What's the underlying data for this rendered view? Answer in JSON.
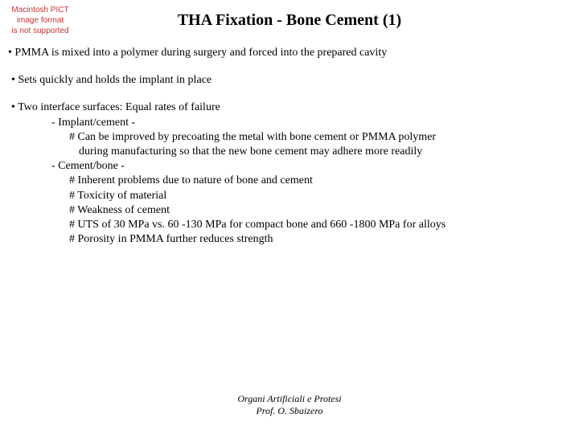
{
  "pict_notice": {
    "line1": "Macintosh PICT",
    "line2": "image format",
    "line3": "is not supported"
  },
  "title": "THA Fixation - Bone Cement (1)",
  "bullets": {
    "b1": "• PMMA is mixed into a polymer during surgery and forced into the prepared cavity",
    "b2": "•  Sets quickly and holds the implant in place",
    "b3": "•  Two interface surfaces: Equal rates of failure",
    "b3_sub1": "- Implant/cement -",
    "b3_sub1_1a": "# Can be improved by precoating the metal with bone cement or PMMA polymer",
    "b3_sub1_1b": "during manufacturing so that the new bone cement may adhere more readily",
    "b3_sub2": "- Cement/bone -",
    "b3_sub2_1": "# Inherent problems due to nature of bone and cement",
    "b3_sub2_2": "# Toxicity of material",
    "b3_sub2_3": "# Weakness of cement",
    "b3_sub2_4": "# UTS of 30 MPa vs. 60 -130 MPa for compact bone and 660 -1800 MPa for alloys",
    "b3_sub2_5": "# Porosity in PMMA further reduces strength"
  },
  "footer": {
    "line1": "Organi Artificiali e Protesi",
    "line2": "Prof. O. Sbaizero"
  },
  "colors": {
    "background": "#ffffff",
    "text": "#000000",
    "pict_text": "#cc3333"
  },
  "typography": {
    "title_fontsize": 20,
    "body_fontsize": 14,
    "footer_fontsize": 12,
    "pict_fontsize": 10,
    "body_font": "Times New Roman",
    "pict_font": "Arial"
  }
}
